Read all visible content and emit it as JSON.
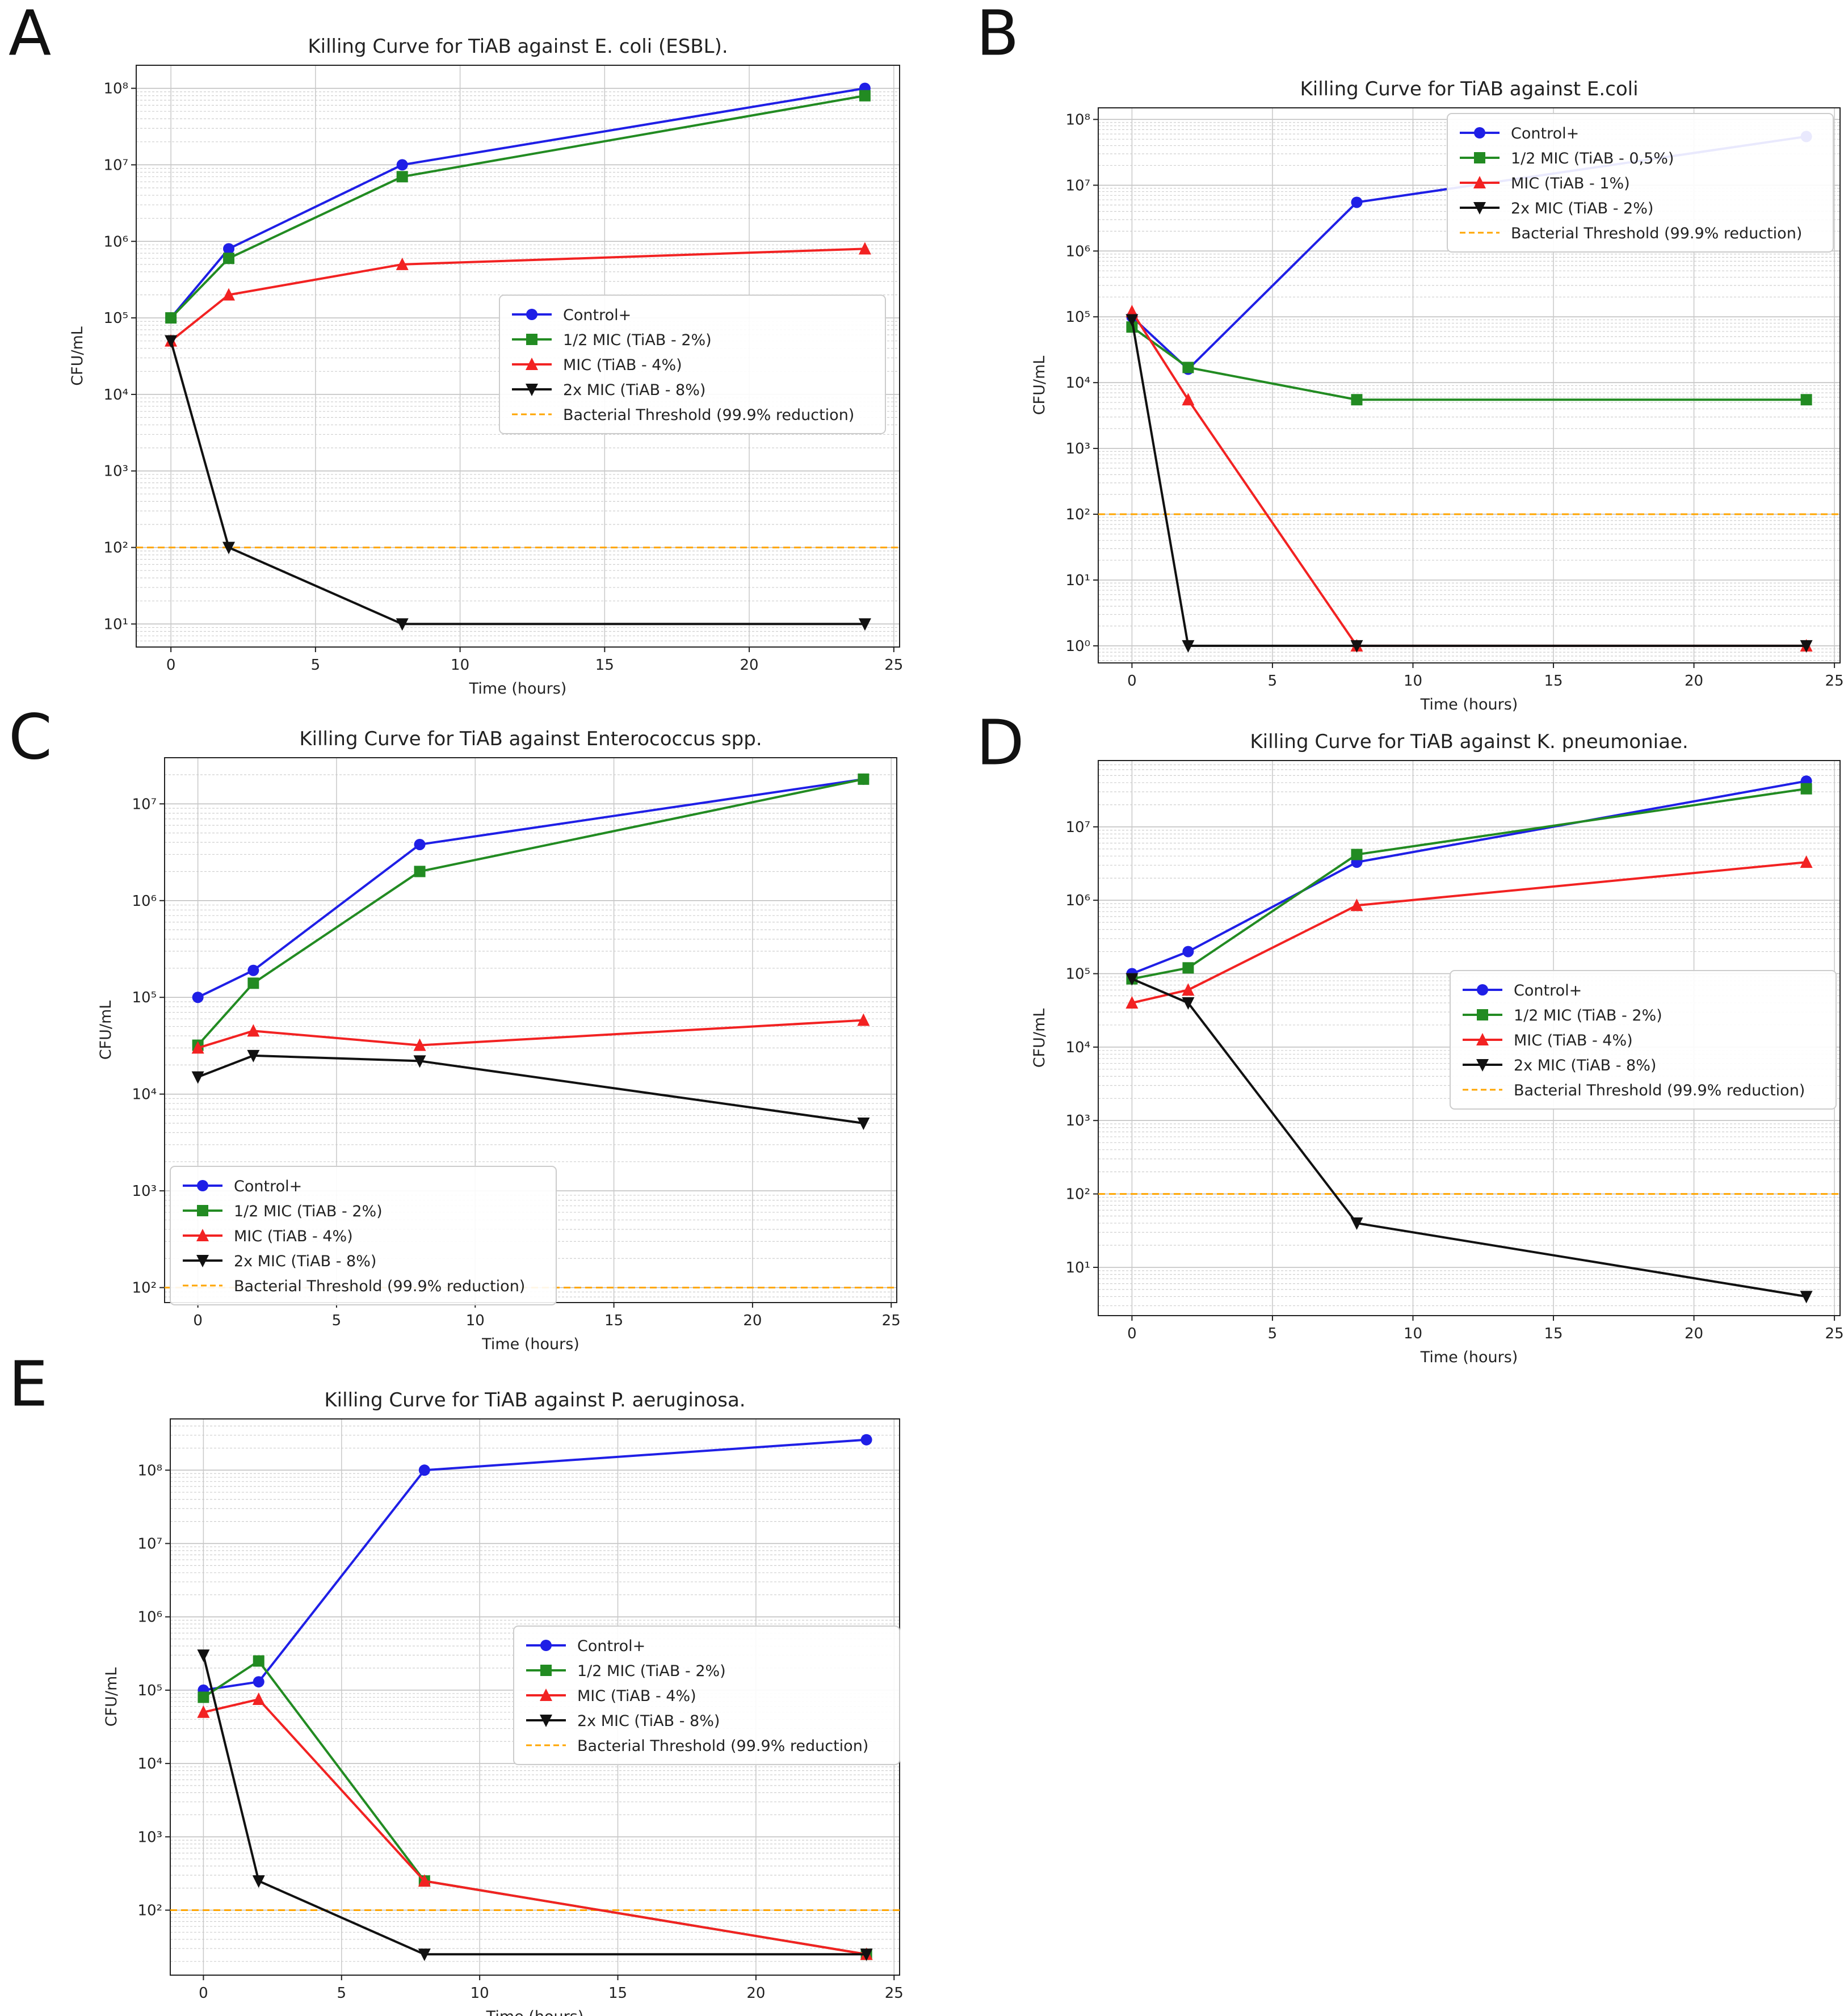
{
  "figure": {
    "panels": [
      {
        "letter": "A",
        "title": "Killing Curve for TiAB against E. coli (ESBL)."
      },
      {
        "letter": "B",
        "title": "Killing Curve for TiAB against E.coli"
      },
      {
        "letter": "C",
        "title": "Killing Curve for TiAB against Enterococcus spp."
      },
      {
        "letter": "D",
        "title": "Killing Curve for TiAB against K. pneumoniae."
      },
      {
        "letter": "E",
        "title": "Killing Curve for TiAB against P. aeruginosa."
      }
    ]
  },
  "chart_data": [
    {
      "type": "line",
      "title": "Killing Curve for TiAB against E. coli (ESBL).",
      "xlabel": "Time (hours)",
      "ylabel": "CFU/mL",
      "yscale": "log",
      "xlim": [
        -1.2,
        25.2
      ],
      "ylim": [
        5,
        200000000
      ],
      "xticks": [
        0,
        5,
        10,
        15,
        20,
        25
      ],
      "yticks_exp": [
        1,
        2,
        3,
        4,
        5,
        6,
        7,
        8
      ],
      "grid": true,
      "legend_position": "center-right",
      "x": [
        0,
        2,
        8,
        24
      ],
      "series": [
        {
          "name": "Control+",
          "color": "#1f1fe6",
          "marker": "circle",
          "values": [
            100000,
            800000,
            10000000,
            100000000
          ]
        },
        {
          "name": "1/2 MIC (TiAB - 2%)",
          "color": "#228b22",
          "marker": "square",
          "values": [
            100000,
            600000,
            7000000,
            80000000
          ]
        },
        {
          "name": "MIC (TiAB - 4%)",
          "color": "#f22222",
          "marker": "triangle-up",
          "values": [
            50000,
            200000,
            500000,
            800000
          ]
        },
        {
          "name": "2x MIC (TiAB - 8%)",
          "color": "#111111",
          "marker": "triangle-down",
          "values": [
            50000,
            100,
            10,
            10
          ]
        }
      ],
      "threshold": {
        "name": "Bacterial Threshold (99.9% reduction)",
        "value": 100,
        "color": "#ffa500"
      }
    },
    {
      "type": "line",
      "title": "Killing Curve for TiAB against E.coli",
      "xlabel": "Time (hours)",
      "ylabel": "CFU/mL",
      "yscale": "log",
      "xlim": [
        -1.2,
        25.2
      ],
      "ylim": [
        0.55,
        150000000
      ],
      "xticks": [
        0,
        5,
        10,
        15,
        20,
        25
      ],
      "yticks_exp": [
        0,
        1,
        2,
        3,
        4,
        5,
        6,
        7,
        8
      ],
      "grid": true,
      "legend_position": "upper-right",
      "x": [
        0,
        2,
        8,
        24
      ],
      "series": [
        {
          "name": "Control+",
          "color": "#1f1fe6",
          "marker": "circle",
          "values": [
            100000,
            16000,
            5500000,
            55000000
          ]
        },
        {
          "name": "1/2 MIC (TiAB - 0,5%)",
          "color": "#228b22",
          "marker": "square",
          "values": [
            70000,
            17000,
            5500,
            5500
          ]
        },
        {
          "name": "MIC (TiAB - 1%)",
          "color": "#f22222",
          "marker": "triangle-up",
          "values": [
            120000,
            5500,
            1,
            1
          ]
        },
        {
          "name": "2x MIC (TiAB - 2%)",
          "color": "#111111",
          "marker": "triangle-down",
          "values": [
            90000,
            1,
            1,
            1
          ]
        }
      ],
      "threshold": {
        "name": "Bacterial Threshold (99.9% reduction)",
        "value": 100,
        "color": "#ffa500"
      }
    },
    {
      "type": "line",
      "title": "Killing Curve for TiAB against Enterococcus spp.",
      "xlabel": "Time (hours)",
      "ylabel": "CFU/mL",
      "yscale": "log",
      "xlim": [
        -1.2,
        25.2
      ],
      "ylim": [
        70,
        30000000
      ],
      "xticks": [
        0,
        5,
        10,
        15,
        20,
        25
      ],
      "yticks_exp": [
        2,
        3,
        4,
        5,
        6,
        7
      ],
      "grid": true,
      "legend_position": "lower-left",
      "x": [
        0,
        2,
        8,
        24
      ],
      "series": [
        {
          "name": "Control+",
          "color": "#1f1fe6",
          "marker": "circle",
          "values": [
            100000,
            190000,
            3800000,
            18000000
          ]
        },
        {
          "name": "1/2 MIC (TiAB - 2%)",
          "color": "#228b22",
          "marker": "square",
          "values": [
            32000,
            140000,
            2000000,
            18000000
          ]
        },
        {
          "name": "MIC (TiAB - 4%)",
          "color": "#f22222",
          "marker": "triangle-up",
          "values": [
            30000,
            45000,
            32000,
            58000
          ]
        },
        {
          "name": "2x MIC (TiAB - 8%)",
          "color": "#111111",
          "marker": "triangle-down",
          "values": [
            15000,
            25000,
            22000,
            5000
          ]
        }
      ],
      "threshold": {
        "name": "Bacterial Threshold (99.9% reduction)",
        "value": 100,
        "color": "#ffa500"
      }
    },
    {
      "type": "line",
      "title": "Killing Curve for TiAB against K. pneumoniae.",
      "xlabel": "Time (hours)",
      "ylabel": "CFU/mL",
      "yscale": "log",
      "xlim": [
        -1.2,
        25.2
      ],
      "ylim": [
        2.2,
        80000000
      ],
      "xticks": [
        0,
        5,
        10,
        15,
        20,
        25
      ],
      "yticks_exp": [
        1,
        2,
        3,
        4,
        5,
        6,
        7
      ],
      "grid": true,
      "legend_position": "center-right",
      "x": [
        0,
        2,
        8,
        24
      ],
      "series": [
        {
          "name": "Control+",
          "color": "#1f1fe6",
          "marker": "circle",
          "values": [
            100000,
            200000,
            3300000,
            42000000
          ]
        },
        {
          "name": "1/2 MIC (TiAB - 2%)",
          "color": "#228b22",
          "marker": "square",
          "values": [
            85000,
            120000,
            4200000,
            33000000
          ]
        },
        {
          "name": "MIC (TiAB - 4%)",
          "color": "#f22222",
          "marker": "triangle-up",
          "values": [
            40000,
            60000,
            850000,
            3300000
          ]
        },
        {
          "name": "2x MIC (TiAB - 8%)",
          "color": "#111111",
          "marker": "triangle-down",
          "values": [
            85000,
            40000,
            40,
            4
          ]
        }
      ],
      "threshold": {
        "name": "Bacterial Threshold (99.9% reduction)",
        "value": 100,
        "color": "#ffa500"
      }
    },
    {
      "type": "line",
      "title": "Killing Curve for TiAB against P. aeruginosa.",
      "xlabel": "Time (hours)",
      "ylabel": "CFU/mL",
      "yscale": "log",
      "xlim": [
        -1.2,
        25.2
      ],
      "ylim": [
        13,
        500000000
      ],
      "xticks": [
        0,
        5,
        10,
        15,
        20,
        25
      ],
      "yticks_exp": [
        2,
        3,
        4,
        5,
        6,
        7,
        8
      ],
      "grid": true,
      "legend_position": "center-right",
      "x": [
        0,
        2,
        8,
        24
      ],
      "series": [
        {
          "name": "Control+",
          "color": "#1f1fe6",
          "marker": "circle",
          "values": [
            100000,
            130000,
            100000000,
            260000000
          ]
        },
        {
          "name": "1/2 MIC (TiAB - 2%)",
          "color": "#228b22",
          "marker": "square",
          "values": [
            80000,
            250000,
            250,
            25
          ]
        },
        {
          "name": "MIC (TiAB - 4%)",
          "color": "#f22222",
          "marker": "triangle-up",
          "values": [
            50000,
            75000,
            250,
            25
          ]
        },
        {
          "name": "2x MIC (TiAB - 8%)",
          "color": "#111111",
          "marker": "triangle-down",
          "values": [
            300000,
            250,
            25,
            25
          ]
        }
      ],
      "threshold": {
        "name": "Bacterial Threshold (99.9% reduction)",
        "value": 100,
        "color": "#ffa500"
      }
    }
  ]
}
